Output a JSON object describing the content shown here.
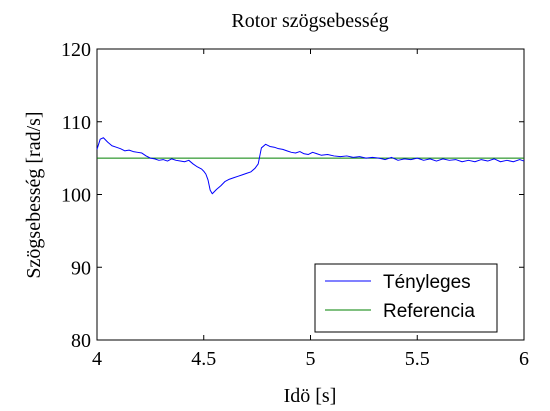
{
  "chart_data": {
    "type": "line",
    "title": "Rotor szögsebesség",
    "xlabel": "Idö [s]",
    "ylabel": "Szögsebesség [rad/s]",
    "xlim": [
      4,
      6
    ],
    "ylim": [
      80,
      120
    ],
    "xticks": [
      4,
      4.5,
      5,
      5.5,
      6
    ],
    "xtick_labels": [
      "4",
      "4.5",
      "5",
      "5.5",
      "6"
    ],
    "yticks": [
      80,
      90,
      100,
      110,
      120
    ],
    "ytick_labels": [
      "80",
      "90",
      "100",
      "110",
      "120"
    ],
    "grid": false,
    "legend_position": "bottom-right",
    "series": [
      {
        "name": "Tényleges",
        "color": "#0000ff",
        "x": [
          4.0,
          4.015,
          4.03,
          4.05,
          4.07,
          4.09,
          4.11,
          4.13,
          4.15,
          4.17,
          4.19,
          4.21,
          4.23,
          4.25,
          4.27,
          4.29,
          4.31,
          4.33,
          4.35,
          4.37,
          4.39,
          4.41,
          4.43,
          4.45,
          4.47,
          4.49,
          4.5,
          4.51,
          4.52,
          4.53,
          4.54,
          4.56,
          4.58,
          4.6,
          4.62,
          4.64,
          4.66,
          4.68,
          4.7,
          4.72,
          4.74,
          4.755,
          4.77,
          4.79,
          4.81,
          4.83,
          4.85,
          4.87,
          4.89,
          4.91,
          4.93,
          4.95,
          4.97,
          4.99,
          5.01,
          5.03,
          5.05,
          5.08,
          5.11,
          5.14,
          5.17,
          5.2,
          5.23,
          5.26,
          5.29,
          5.32,
          5.35,
          5.38,
          5.41,
          5.44,
          5.47,
          5.5,
          5.53,
          5.56,
          5.59,
          5.62,
          5.65,
          5.68,
          5.71,
          5.74,
          5.77,
          5.8,
          5.83,
          5.86,
          5.89,
          5.92,
          5.95,
          5.98,
          6.0
        ],
        "y": [
          106.2,
          107.6,
          107.8,
          107.2,
          106.7,
          106.5,
          106.3,
          106.0,
          106.1,
          105.9,
          105.8,
          105.7,
          105.3,
          105.0,
          104.9,
          104.7,
          104.8,
          104.6,
          104.9,
          104.7,
          104.6,
          104.5,
          104.7,
          104.2,
          103.8,
          103.5,
          103.2,
          102.8,
          102.0,
          100.6,
          100.1,
          100.7,
          101.2,
          101.8,
          102.1,
          102.3,
          102.5,
          102.7,
          102.9,
          103.1,
          103.6,
          104.2,
          106.4,
          106.9,
          106.6,
          106.5,
          106.3,
          106.2,
          106.0,
          105.8,
          105.7,
          105.9,
          105.6,
          105.5,
          105.8,
          105.6,
          105.4,
          105.5,
          105.3,
          105.2,
          105.3,
          105.1,
          105.2,
          105.0,
          105.1,
          105.0,
          104.8,
          105.1,
          104.7,
          104.9,
          104.8,
          105.0,
          104.7,
          104.9,
          104.6,
          104.9,
          104.7,
          104.8,
          104.5,
          104.7,
          104.5,
          104.8,
          104.6,
          104.9,
          104.5,
          104.7,
          104.5,
          104.8,
          104.6
        ]
      },
      {
        "name": "Referencia",
        "color": "#008000",
        "x": [
          4,
          6
        ],
        "y": [
          105,
          105
        ]
      }
    ]
  }
}
